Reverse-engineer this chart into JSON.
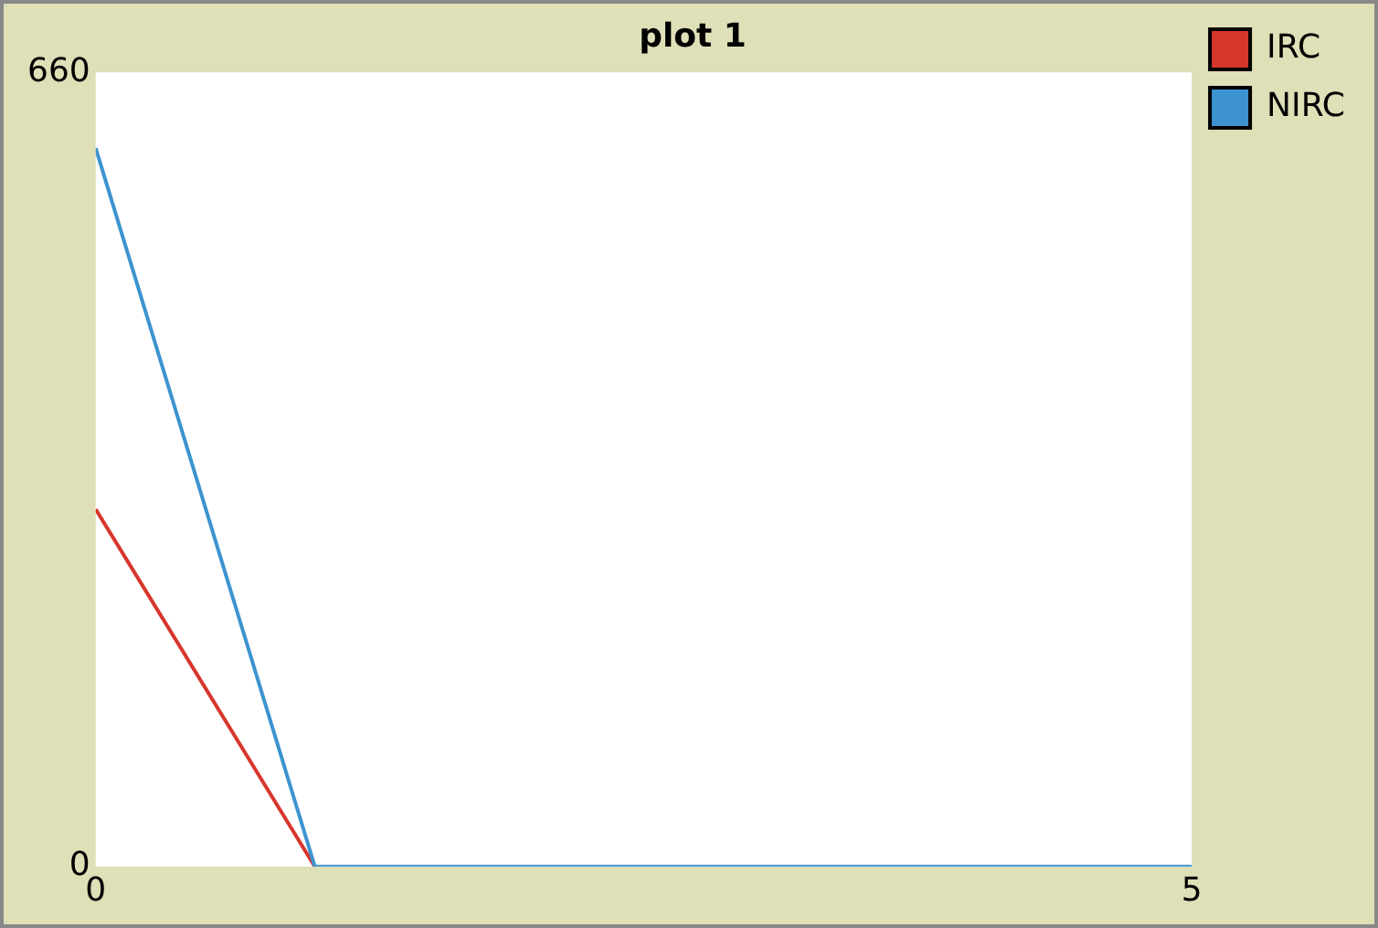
{
  "chart_data": {
    "type": "line",
    "title": "plot 1",
    "x": [
      0,
      1,
      2,
      3,
      4,
      5
    ],
    "series": [
      {
        "name": "IRC",
        "color": "#d7362c",
        "values": [
          297,
          0,
          null,
          null,
          null,
          null
        ]
      },
      {
        "name": "NIRC",
        "color": "#3d93cf",
        "values": [
          597,
          0,
          0,
          0,
          0,
          0
        ]
      }
    ],
    "xlim": [
      0,
      5
    ],
    "xticks": [
      0,
      5
    ],
    "ylim": [
      0,
      660
    ],
    "yticks": [
      0,
      660
    ],
    "grid": false,
    "legend": "right",
    "marker": "none",
    "line_style": "solid"
  }
}
